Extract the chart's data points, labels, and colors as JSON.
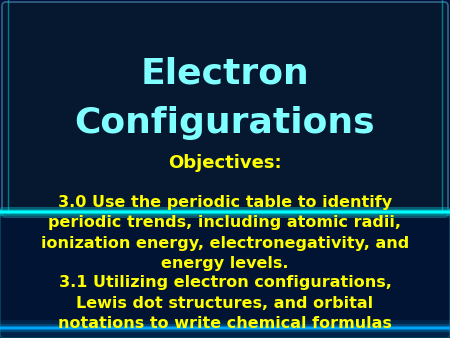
{
  "title_line1": "Electron",
  "title_line2": "Configurations",
  "title_color": "#7FFFFF",
  "title_fontsize": 26,
  "title_fontweight": "bold",
  "objectives_label": "Objectives:",
  "objectives_color": "#FFFF00",
  "objectives_fontsize": 13,
  "objectives_fontweight": "bold",
  "obj30_text": "3.0 Use the periodic table to identify\nperiodic trends, including atomic radii,\nionization energy, electronegativity, and\nenergy levels.",
  "obj30_color": "#FFFF00",
  "obj30_fontsize": 11.5,
  "obj30_fontweight": "bold",
  "obj31_text": "3.1 Utilizing electron configurations,\nLewis dot structures, and orbital\nnotations to write chemical formulas",
  "obj31_color": "#FFFF00",
  "obj31_fontsize": 11.5,
  "obj31_fontweight": "bold",
  "bg_color": "#03113a",
  "title_bg_color": "#0a2a5a",
  "bottom_bg_color": "#010d20",
  "separator_color": "#00FFFF",
  "fig_width": 4.5,
  "fig_height": 3.38,
  "fig_dpi": 100
}
